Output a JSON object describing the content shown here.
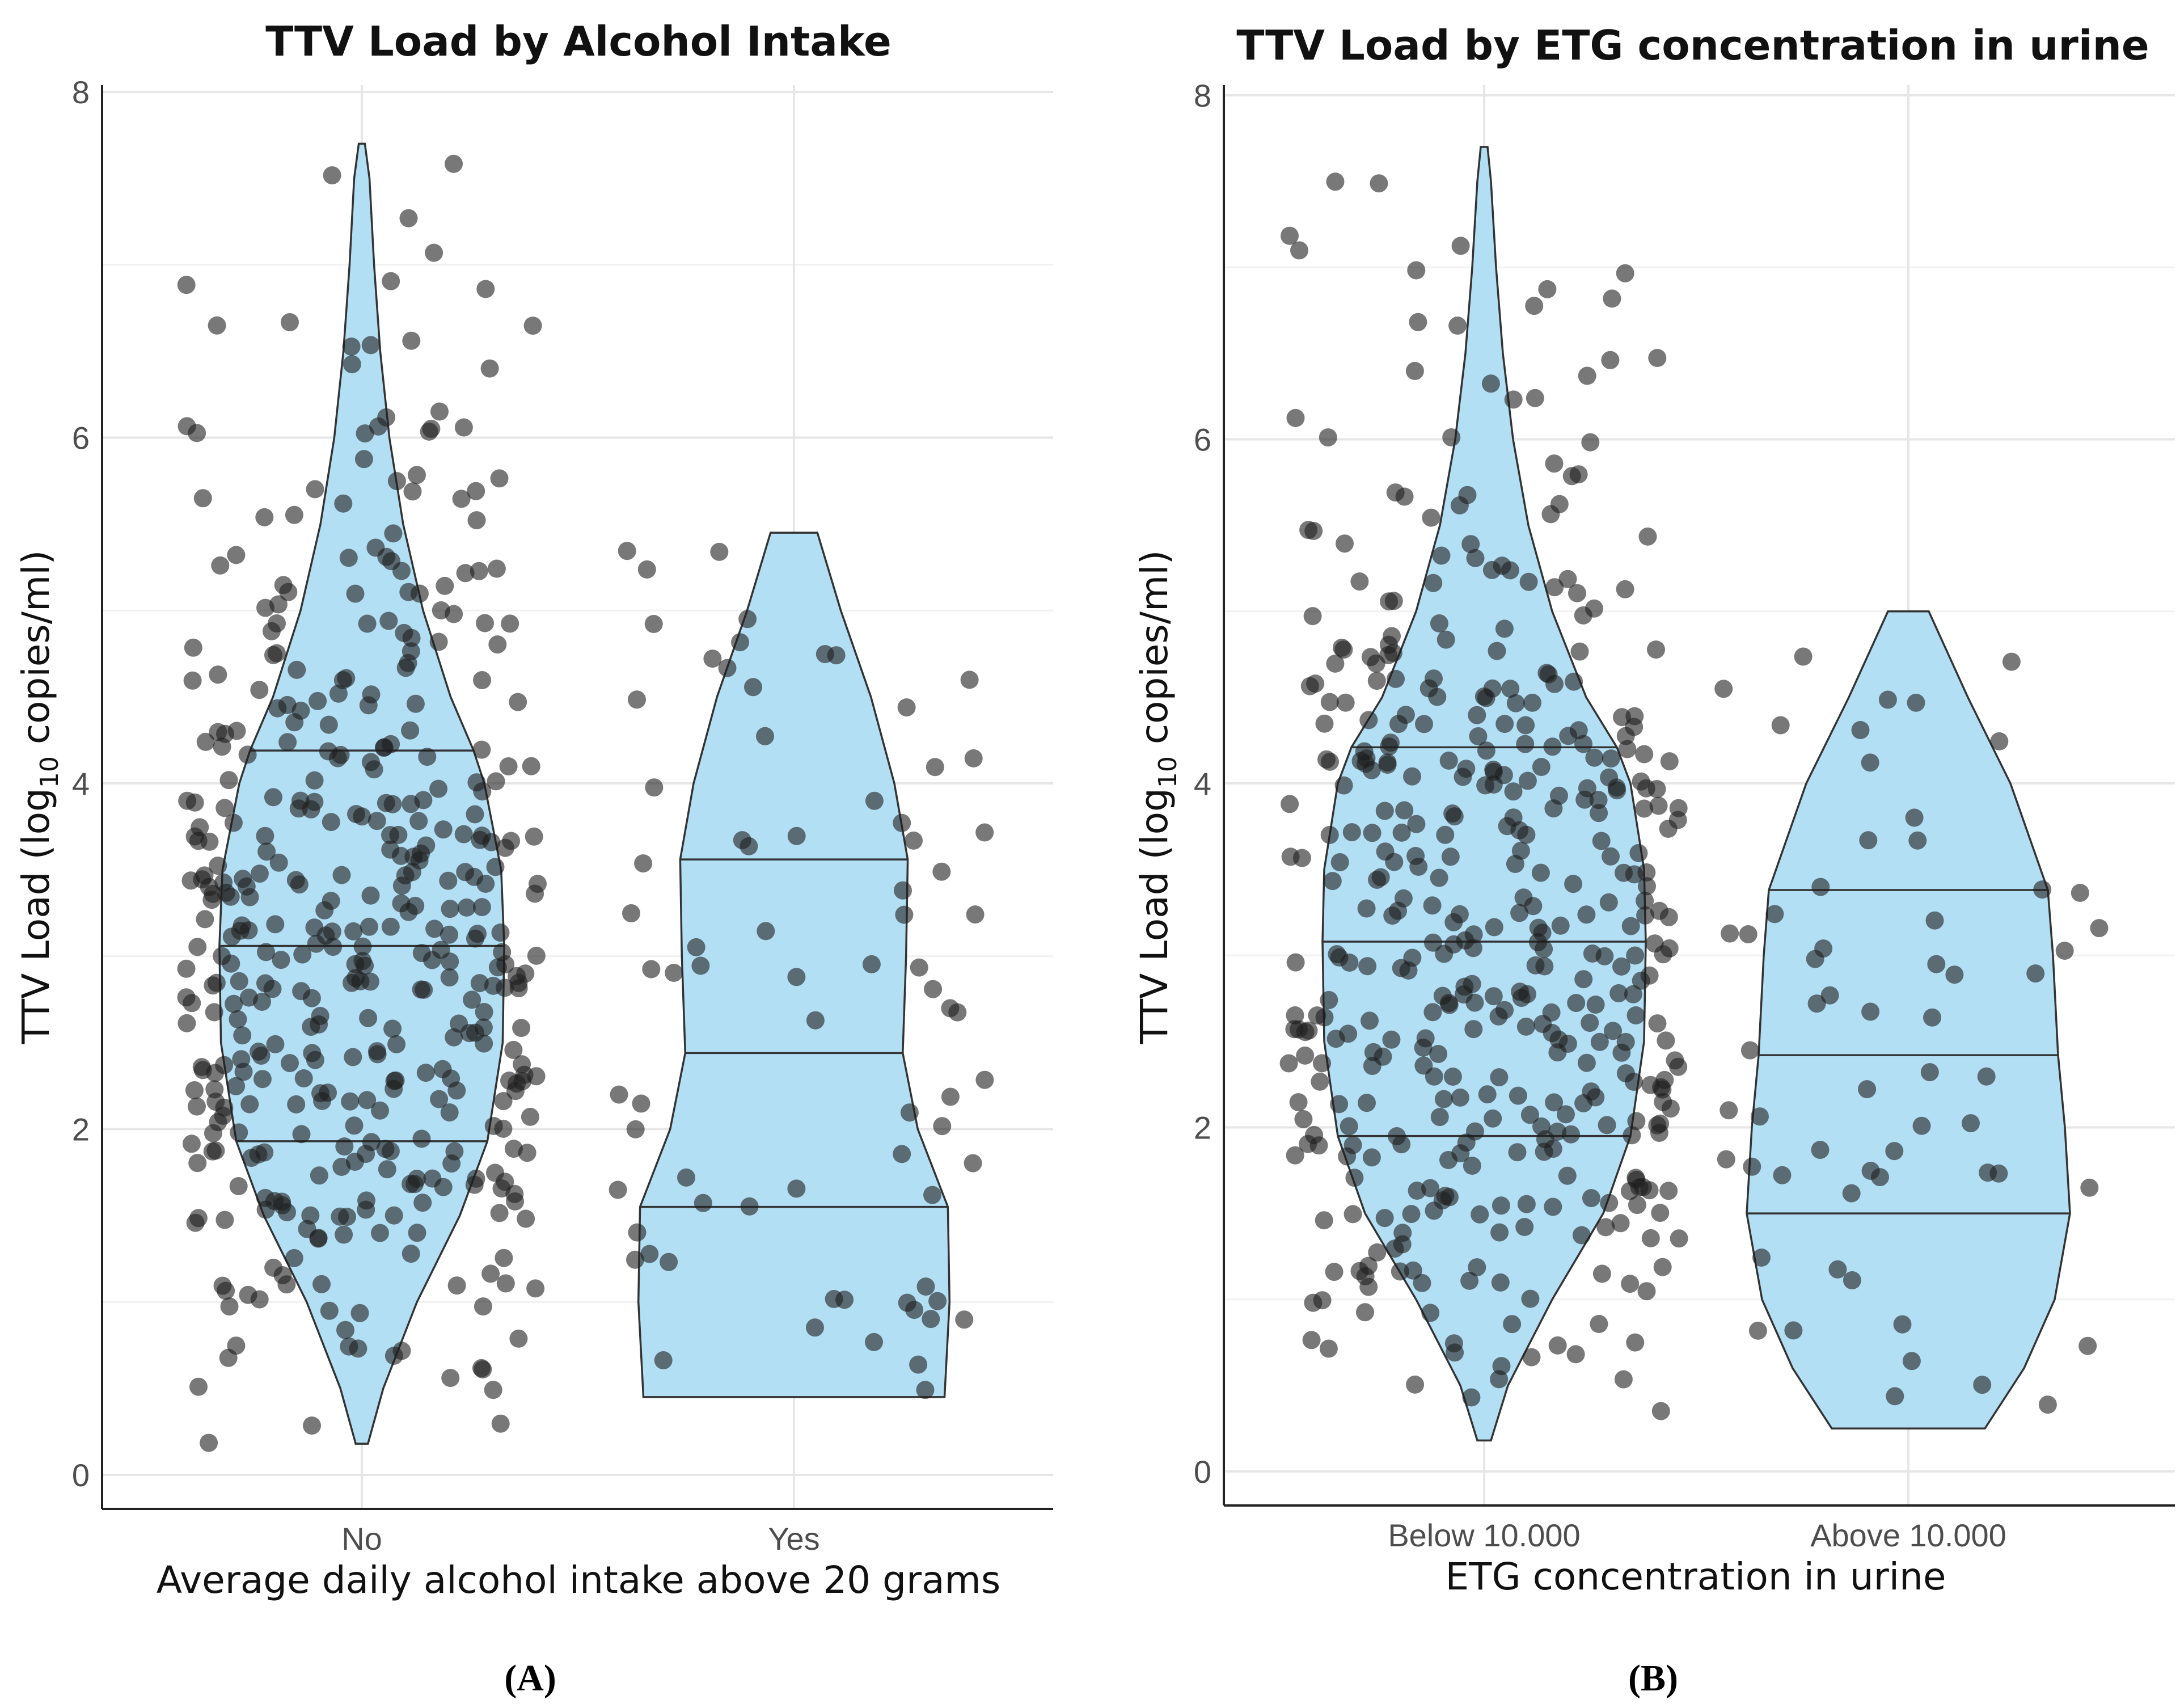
{
  "chart_data": [
    {
      "type": "violin",
      "panel_label": "(A)",
      "title": "TTV Load by Alcohol Intake",
      "xlabel": "Average daily alcohol intake above 20 grams",
      "ylabel_prefix": "TTV Load (log",
      "ylabel_sub": "10",
      "ylabel_suffix": " copies/ml)",
      "categories": [
        "No",
        "Yes"
      ],
      "yticks": [
        0,
        2,
        4,
        6,
        8
      ],
      "ylim": [
        -0.2,
        8
      ],
      "groups": [
        {
          "name": "No",
          "min": 0.18,
          "max": 7.7,
          "quartiles": [
            1.93,
            3.06,
            4.19
          ],
          "profile": [
            [
              0.18,
              0.04
            ],
            [
              0.5,
              0.14
            ],
            [
              1.0,
              0.36
            ],
            [
              1.5,
              0.64
            ],
            [
              1.93,
              0.82
            ],
            [
              2.5,
              0.92
            ],
            [
              3.06,
              0.93
            ],
            [
              3.5,
              0.91
            ],
            [
              4.0,
              0.8
            ],
            [
              4.19,
              0.73
            ],
            [
              4.5,
              0.58
            ],
            [
              5.0,
              0.4
            ],
            [
              5.5,
              0.27
            ],
            [
              6.0,
              0.18
            ],
            [
              6.5,
              0.12
            ],
            [
              7.0,
              0.08
            ],
            [
              7.5,
              0.05
            ],
            [
              7.7,
              0.02
            ]
          ],
          "n_points": 430
        },
        {
          "name": "Yes",
          "min": 0.45,
          "max": 5.45,
          "quartiles": [
            1.55,
            2.44,
            3.56
          ],
          "profile": [
            [
              0.45,
              0.9
            ],
            [
              1.0,
              0.93
            ],
            [
              1.55,
              0.92
            ],
            [
              2.0,
              0.74
            ],
            [
              2.44,
              0.65
            ],
            [
              3.0,
              0.67
            ],
            [
              3.56,
              0.68
            ],
            [
              4.0,
              0.6
            ],
            [
              4.5,
              0.46
            ],
            [
              5.0,
              0.28
            ],
            [
              5.45,
              0.14
            ]
          ],
          "n_points": 75
        }
      ]
    },
    {
      "type": "violin",
      "panel_label": "(B)",
      "title": "TTV Load by ETG concentration in urine",
      "xlabel": "ETG concentration in urine",
      "ylabel_prefix": "TTV Load (log",
      "ylabel_sub": "10",
      "ylabel_suffix": " copies/ml)",
      "categories": [
        "Below 10.000",
        "Above 10.000"
      ],
      "yticks": [
        0,
        2,
        4,
        6,
        8
      ],
      "ylim": [
        -0.2,
        8
      ],
      "groups": [
        {
          "name": "Below 10.000",
          "min": 0.18,
          "max": 7.7,
          "quartiles": [
            1.95,
            3.08,
            4.21
          ],
          "profile": [
            [
              0.18,
              0.04
            ],
            [
              0.5,
              0.14
            ],
            [
              1.0,
              0.4
            ],
            [
              1.5,
              0.7
            ],
            [
              1.95,
              0.86
            ],
            [
              2.5,
              0.94
            ],
            [
              3.08,
              0.95
            ],
            [
              3.5,
              0.94
            ],
            [
              4.0,
              0.86
            ],
            [
              4.21,
              0.78
            ],
            [
              4.5,
              0.6
            ],
            [
              5.0,
              0.4
            ],
            [
              5.5,
              0.26
            ],
            [
              6.0,
              0.17
            ],
            [
              6.5,
              0.11
            ],
            [
              7.0,
              0.07
            ],
            [
              7.5,
              0.04
            ],
            [
              7.7,
              0.02
            ]
          ],
          "n_points": 430
        },
        {
          "name": "Above 10.000",
          "min": 0.25,
          "max": 5.0,
          "quartiles": [
            1.5,
            2.42,
            3.38
          ],
          "profile": [
            [
              0.25,
              0.45
            ],
            [
              0.6,
              0.68
            ],
            [
              1.0,
              0.86
            ],
            [
              1.5,
              0.95
            ],
            [
              2.0,
              0.92
            ],
            [
              2.42,
              0.88
            ],
            [
              3.0,
              0.85
            ],
            [
              3.38,
              0.82
            ],
            [
              4.0,
              0.6
            ],
            [
              4.5,
              0.35
            ],
            [
              5.0,
              0.12
            ]
          ],
          "n_points": 60
        }
      ]
    }
  ]
}
